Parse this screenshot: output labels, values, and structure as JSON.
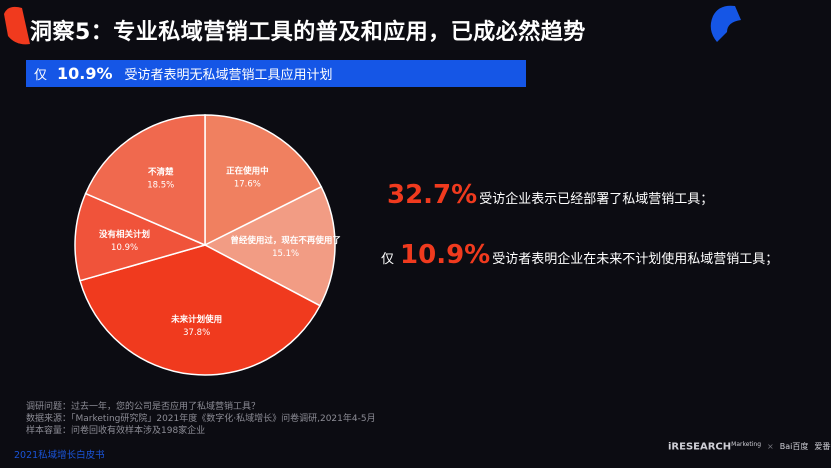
{
  "title": "洞察5：专业私域营销工具的普及和应用，已成必然趋势",
  "banner": {
    "prefix": "仅",
    "value": "10.9%",
    "text": "受访者表明无私域营销工具应用计划"
  },
  "chart_data": {
    "type": "pie",
    "slices": [
      {
        "label": "正在使用中",
        "value": 17.6,
        "value_label": "17.6%",
        "color": "#f08060"
      },
      {
        "label": "曾经使用过，现在不再使用了",
        "value": 15.1,
        "value_label": "15.1%",
        "color": "#f29c84"
      },
      {
        "label": "未来计划使用",
        "value": 37.8,
        "value_label": "37.8%",
        "color": "#f03a1e"
      },
      {
        "label": "没有相关计划",
        "value": 10.9,
        "value_label": "10.9%",
        "color": "#f0533a"
      },
      {
        "label": "不清楚",
        "value": 18.5,
        "value_label": "18.5%",
        "color": "#f0694e"
      }
    ]
  },
  "stats": [
    {
      "prefix": "",
      "value": "32.7%",
      "text": "受访企业表示已经部署了私域营销工具；"
    },
    {
      "prefix": "仅",
      "value": "10.9%",
      "text": "受访者表明企业在未来不计划使用私域营销工具；"
    }
  ],
  "footnote": {
    "question": "调研问题：过去一年，您的公司是否应用了私域营销工具？",
    "source": "数据来源：「Marketing研究院」2021年度《数字化·私域增长》问卷调研,2021年4-5月",
    "sample": "样本容量：问卷回收有效样本涉及198家企业"
  },
  "bottom_left": "2021私域增长白皮书",
  "logos": {
    "iresearch": "iRESEARCH",
    "iresearch_super": "Marketing",
    "baidu": "Bai百度",
    "third": "爱番番",
    "sep": "×"
  },
  "colors": {
    "accent_red": "#f03a1e",
    "banner_blue": "#1556e6",
    "background": "#0c0c12"
  }
}
